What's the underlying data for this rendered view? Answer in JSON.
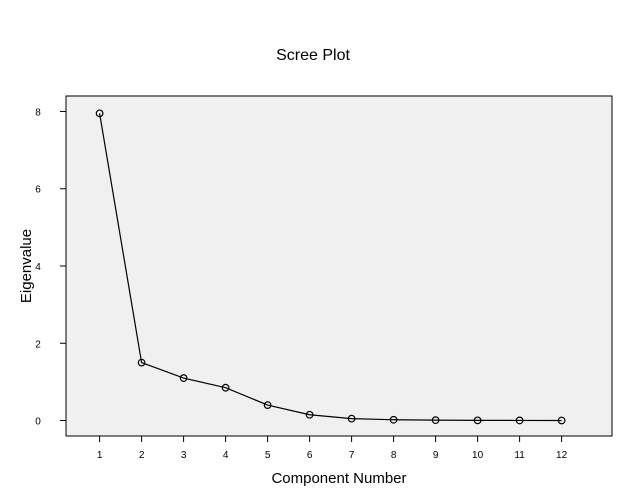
{
  "chart_data": {
    "type": "line",
    "title": "Scree Plot",
    "xlabel": "Component Number",
    "ylabel": "Eigenvalue",
    "x": [
      1,
      2,
      3,
      4,
      5,
      6,
      7,
      8,
      9,
      10,
      11,
      12
    ],
    "x_ticks": [
      "1",
      "2",
      "3",
      "4",
      "5",
      "6",
      "7",
      "8",
      "9",
      "10",
      "11",
      "12"
    ],
    "y_ticks": [
      "0",
      "2",
      "4",
      "6",
      "8"
    ],
    "ylim": [
      -0.4,
      8.4
    ],
    "xlim": [
      0.2,
      13.2
    ],
    "grid": false,
    "legend": "none",
    "series": [
      {
        "values": [
          7.95,
          1.5,
          1.1,
          0.85,
          0.4,
          0.15,
          0.05,
          0.02,
          0.01,
          0.005,
          0.003,
          0.002
        ]
      }
    ],
    "colors": {
      "plot_background": "#f0f0f0",
      "line": "#000000",
      "marker": "#000000",
      "axis": "#000000"
    }
  }
}
